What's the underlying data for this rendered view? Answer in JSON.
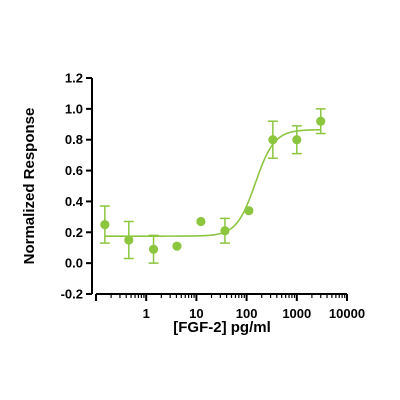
{
  "chart_data": {
    "type": "scatter",
    "title": "",
    "xlabel": "[FGF-2] pg/ml",
    "ylabel": "Normalized Response",
    "xscale": "log",
    "xlim": [
      0.1,
      10000
    ],
    "ylim": [
      -0.2,
      1.2
    ],
    "x_ticks": [
      1,
      10,
      100,
      1000,
      10000
    ],
    "x_tick_labels": [
      "1",
      "10",
      "100",
      "1000",
      "10000"
    ],
    "y_ticks": [
      -0.2,
      0.0,
      0.2,
      0.4,
      0.6,
      0.8,
      1.0,
      1.2
    ],
    "y_tick_labels": [
      "-0.2",
      "0.0",
      "0.2",
      "0.4",
      "0.6",
      "0.8",
      "1.0",
      "1.2"
    ],
    "grid": false,
    "legend": "none",
    "color": "#8cc63f",
    "series": [
      {
        "points": [
          {
            "x": 0.15,
            "y": 0.25,
            "err": 0.12
          },
          {
            "x": 0.45,
            "y": 0.15,
            "err": 0.12
          },
          {
            "x": 1.4,
            "y": 0.09,
            "err": 0.09
          },
          {
            "x": 4.1,
            "y": 0.11,
            "err": 0
          },
          {
            "x": 12.3,
            "y": 0.27,
            "err": 0
          },
          {
            "x": 37,
            "y": 0.21,
            "err": 0.08
          },
          {
            "x": 111,
            "y": 0.34,
            "err": 0
          },
          {
            "x": 333,
            "y": 0.8,
            "err": 0.12
          },
          {
            "x": 1000,
            "y": 0.8,
            "err": 0.09
          },
          {
            "x": 3000,
            "y": 0.92,
            "err": 0.08
          }
        ]
      }
    ],
    "fit": {
      "type": "4PL",
      "bottom": 0.175,
      "top": 0.865,
      "ec50": 150,
      "hill": 2.3
    }
  }
}
